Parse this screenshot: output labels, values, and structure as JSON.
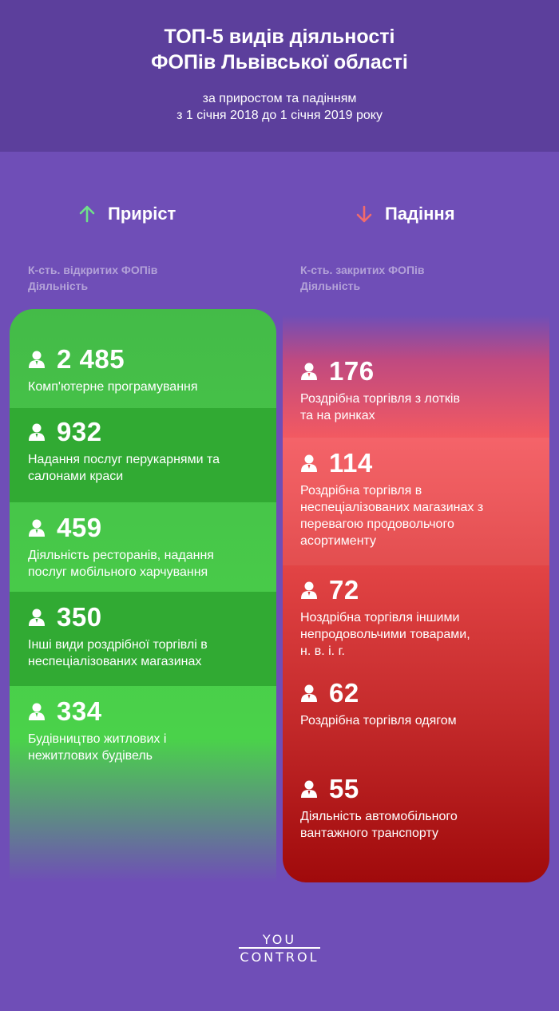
{
  "header": {
    "title_line1": "ТОП-5 видів діяльності",
    "title_line2": "ФОПів Львівської області",
    "subtitle_line1": "за приростом та падінням",
    "subtitle_line2": "з 1 січня 2018 до 1 січня 2019 року"
  },
  "growth": {
    "heading": "Приріст",
    "icon": "arrow-up-icon",
    "color": "#6fe08a",
    "sub_line1": "К-сть. відкритих ФОПів",
    "sub_line2": "Діяльність",
    "items": [
      {
        "value": "2 485",
        "label_lines": [
          "Комп'ютерне програмування"
        ]
      },
      {
        "value": "932",
        "label_lines": [
          "Надання послуг перукарнями та",
          "салонами краси"
        ]
      },
      {
        "value": "459",
        "label_lines": [
          "Діяльність ресторанів, надання",
          "послуг мобільного харчування"
        ]
      },
      {
        "value": "350",
        "label_lines": [
          "Інші види роздрібної торгівлі в",
          "неспеціалізованих магазинах"
        ]
      },
      {
        "value": "334",
        "label_lines": [
          "Будівництво житлових і",
          "нежитлових будівель"
        ]
      }
    ]
  },
  "decline": {
    "heading": "Падіння",
    "icon": "arrow-down-icon",
    "color": "#f26b6b",
    "sub_line1": "К-сть. закритих ФОПів",
    "sub_line2": "Діяльність",
    "items": [
      {
        "value": "176",
        "label_lines": [
          "Роздрібна торгівля з лотків",
          "та на ринках"
        ]
      },
      {
        "value": "114",
        "label_lines": [
          "Роздрібна торгівля в",
          "неспеціалізованих магазинах з",
          "перевагою продовольчого",
          "асортименту"
        ]
      },
      {
        "value": "72",
        "label_lines": [
          "Ноздрібна торгівля іншими",
          "непродовольчими товарами,",
          "н. в. і. г."
        ]
      },
      {
        "value": "62",
        "label_lines": [
          "Роздрібна торгівля одягом"
        ]
      },
      {
        "value": "55",
        "label_lines": [
          "Діяльність автомобільного",
          "вантажного транспорту"
        ]
      }
    ]
  },
  "logo": {
    "line1": "YOU",
    "line2": "CONTROL"
  }
}
